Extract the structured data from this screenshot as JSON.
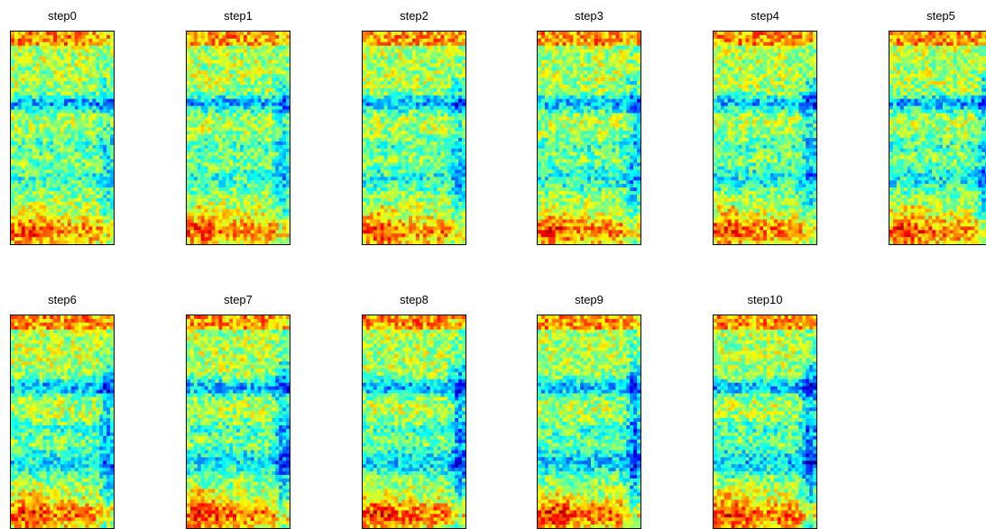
{
  "chart_data": [
    {
      "type": "heatmap",
      "title": "step0",
      "colormap": "jet",
      "xlabel": "",
      "ylabel": "",
      "ticks": "none"
    },
    {
      "type": "heatmap",
      "title": "step1",
      "colormap": "jet",
      "xlabel": "",
      "ylabel": "",
      "ticks": "none"
    },
    {
      "type": "heatmap",
      "title": "step2",
      "colormap": "jet",
      "xlabel": "",
      "ylabel": "",
      "ticks": "none"
    },
    {
      "type": "heatmap",
      "title": "step3",
      "colormap": "jet",
      "xlabel": "",
      "ylabel": "",
      "ticks": "none"
    },
    {
      "type": "heatmap",
      "title": "step4",
      "colormap": "jet",
      "xlabel": "",
      "ylabel": "",
      "ticks": "none"
    },
    {
      "type": "heatmap",
      "title": "step5",
      "colormap": "jet",
      "xlabel": "",
      "ylabel": "",
      "ticks": "none"
    },
    {
      "type": "heatmap",
      "title": "step6",
      "colormap": "jet",
      "xlabel": "",
      "ylabel": "",
      "ticks": "none"
    },
    {
      "type": "heatmap",
      "title": "step7",
      "colormap": "jet",
      "xlabel": "",
      "ylabel": "",
      "ticks": "none"
    },
    {
      "type": "heatmap",
      "title": "step8",
      "colormap": "jet",
      "xlabel": "",
      "ylabel": "",
      "ticks": "none"
    },
    {
      "type": "heatmap",
      "title": "step9",
      "colormap": "jet",
      "xlabel": "",
      "ylabel": "",
      "ticks": "none"
    },
    {
      "type": "heatmap",
      "title": "step10",
      "colormap": "jet",
      "xlabel": "",
      "ylabel": "",
      "ticks": "none"
    }
  ],
  "colors": {
    "background": "#ffffff",
    "axes_border": "#000000"
  }
}
